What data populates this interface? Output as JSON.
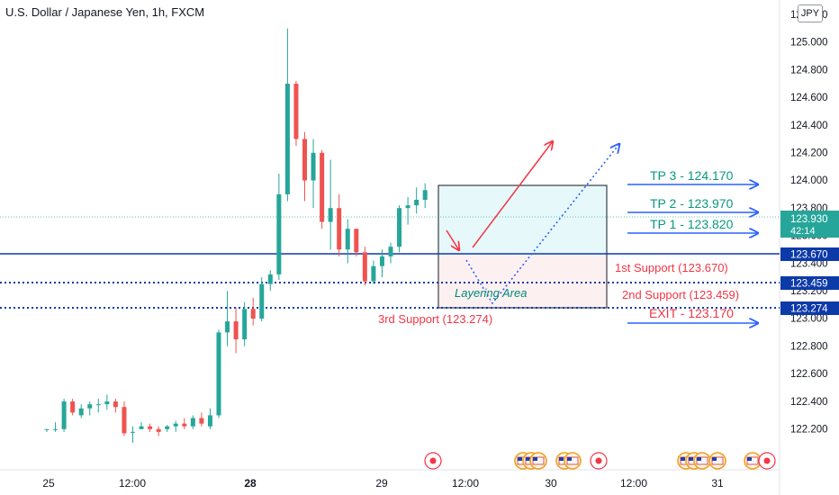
{
  "header": {
    "title": "U.S. Dollar / Japanese Yen, 1h, FXCM",
    "currency_badge": "JPY"
  },
  "colors": {
    "up": "#26a69a",
    "down": "#ef5350",
    "level": "#0d3aa9",
    "annotation_blue": "#2962ff",
    "target_text": "#089981",
    "support_text": "#f23645",
    "layering_text": "#00897b",
    "zone_top": "#e6f8fa",
    "zone_bottom": "#fdf0f0"
  },
  "chart_data": {
    "type": "candlestick",
    "symbol": "USDJPY",
    "timeframe": "1h",
    "ylim": [
      122.1,
      125.3
    ],
    "y_ticks": [
      "125.200",
      "125.000",
      "124.800",
      "124.600",
      "124.400",
      "124.200",
      "124.000",
      "123.800",
      "123.600",
      "123.400",
      "123.200",
      "123.000",
      "122.800",
      "122.600",
      "122.400",
      "122.200"
    ],
    "x_ticks": [
      "25",
      "12:00",
      "28",
      "29",
      "12:00",
      "30",
      "12:00",
      "31"
    ],
    "candles": [
      [
        122.2,
        122.2,
        122.18,
        122.2
      ],
      [
        122.2,
        122.25,
        122.18,
        122.2
      ],
      [
        122.2,
        122.42,
        122.18,
        122.4
      ],
      [
        122.4,
        122.42,
        122.3,
        122.32
      ],
      [
        122.3,
        122.38,
        122.28,
        122.35
      ],
      [
        122.35,
        122.4,
        122.3,
        122.38
      ],
      [
        122.38,
        122.42,
        122.32,
        122.38
      ],
      [
        122.38,
        122.45,
        122.34,
        122.4
      ],
      [
        122.4,
        122.42,
        122.32,
        122.36
      ],
      [
        122.36,
        122.4,
        122.15,
        122.17
      ],
      [
        122.18,
        122.22,
        122.1,
        122.18
      ],
      [
        122.2,
        122.25,
        122.2,
        122.22
      ],
      [
        122.22,
        122.24,
        122.18,
        122.2
      ],
      [
        122.2,
        122.22,
        122.15,
        122.18
      ],
      [
        122.2,
        122.23,
        122.18,
        122.22
      ],
      [
        122.22,
        122.26,
        122.18,
        122.24
      ],
      [
        122.24,
        122.28,
        122.2,
        122.22
      ],
      [
        122.22,
        122.3,
        122.2,
        122.28
      ],
      [
        122.28,
        122.32,
        122.22,
        122.24
      ],
      [
        122.22,
        122.35,
        122.2,
        122.3
      ],
      [
        122.3,
        122.92,
        122.28,
        122.9
      ],
      [
        122.9,
        123.2,
        122.8,
        122.98
      ],
      [
        122.98,
        123.08,
        122.75,
        122.85
      ],
      [
        122.85,
        123.12,
        122.8,
        123.07
      ],
      [
        123.07,
        123.15,
        122.95,
        123.0
      ],
      [
        123.0,
        123.3,
        122.98,
        123.25
      ],
      [
        123.25,
        123.35,
        123.2,
        123.32
      ],
      [
        123.32,
        124.05,
        123.28,
        123.9
      ],
      [
        123.9,
        125.1,
        123.85,
        124.7
      ],
      [
        124.7,
        124.72,
        124.25,
        124.3
      ],
      [
        124.3,
        124.35,
        123.85,
        124.0
      ],
      [
        124.0,
        124.3,
        123.8,
        124.2
      ],
      [
        124.2,
        124.22,
        123.65,
        123.7
      ],
      [
        123.7,
        124.15,
        123.5,
        123.8
      ],
      [
        123.8,
        123.9,
        123.45,
        123.5
      ],
      [
        123.5,
        123.72,
        123.4,
        123.65
      ],
      [
        123.65,
        123.65,
        123.45,
        123.48
      ],
      [
        123.48,
        123.52,
        123.24,
        123.27
      ],
      [
        123.27,
        123.42,
        123.25,
        123.38
      ],
      [
        123.38,
        123.5,
        123.3,
        123.45
      ],
      [
        123.45,
        123.55,
        123.4,
        123.52
      ],
      [
        123.52,
        123.82,
        123.48,
        123.8
      ],
      [
        123.8,
        123.88,
        123.68,
        123.82
      ],
      [
        123.82,
        123.95,
        123.76,
        123.86
      ],
      [
        123.86,
        123.98,
        123.8,
        123.93
      ]
    ],
    "current_price": "123.930",
    "countdown": "42:14",
    "levels": [
      {
        "price_label": "123.670",
        "style": "solid"
      },
      {
        "price_label": "123.459",
        "style": "dotted"
      },
      {
        "price_label": "123.274",
        "style": "dotted"
      }
    ],
    "annotations": {
      "tp3": "TP 3 - 124.170",
      "tp2": "TP 2 - 123.970",
      "tp1": "TP 1 - 123.820",
      "support1": "1st Support (123.670)",
      "support2": "2nd Support (123.459)",
      "support3": "3rd Support (123.274)",
      "exit": "EXIT - 123.170",
      "layering": "Layering Area"
    }
  }
}
